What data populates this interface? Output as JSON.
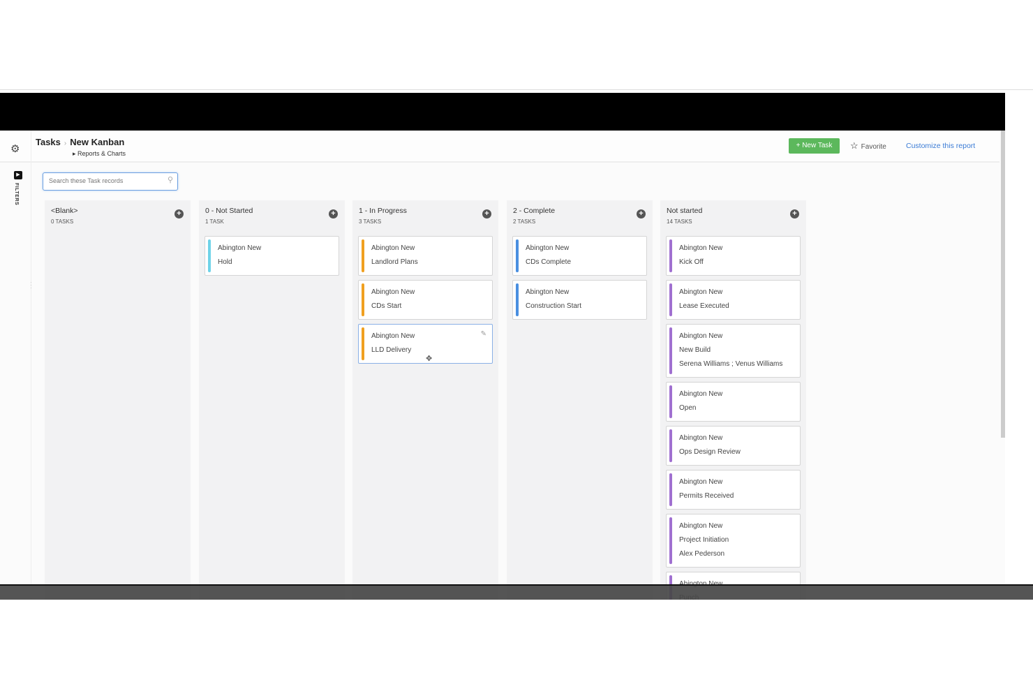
{
  "header": {
    "breadcrumb_root": "Tasks",
    "title": "New Kanban",
    "subtitle": "Reports & Charts",
    "new_task": "+ New Task",
    "favorite": "Favorite",
    "customize": "Customize this report"
  },
  "filters": {
    "label": "FILTERS"
  },
  "search": {
    "placeholder": "Search these Task records"
  },
  "colors": {
    "not_started_0": "#6fd3e8",
    "in_progress": "#f0a020",
    "complete": "#4a8fe0",
    "not_started": "#a070d0",
    "new_task_button": "#5cb85c",
    "link": "#3a7bd5"
  },
  "columns": [
    {
      "title": "<Blank>",
      "count": "0 TASKS",
      "color": "#6fd3e8",
      "cards": []
    },
    {
      "title": "0 - Not Started",
      "count": "1 TASK",
      "color": "#6fd3e8",
      "cards": [
        {
          "lines": [
            "Abington New",
            "Hold"
          ]
        }
      ]
    },
    {
      "title": "1 - In Progress",
      "count": "3 TASKS",
      "color": "#f0a020",
      "cards": [
        {
          "lines": [
            "Abington New",
            "Landlord Plans"
          ]
        },
        {
          "lines": [
            "Abington New",
            "CDs Start"
          ]
        },
        {
          "lines": [
            "Abington New",
            "LLD Delivery"
          ],
          "active": true
        }
      ]
    },
    {
      "title": "2 - Complete",
      "count": "2 TASKS",
      "color": "#4a8fe0",
      "cards": [
        {
          "lines": [
            "Abington New",
            "CDs Complete"
          ]
        },
        {
          "lines": [
            "Abington New",
            "Construction Start"
          ]
        }
      ]
    },
    {
      "title": "Not started",
      "count": "14 TASKS",
      "color": "#a070d0",
      "cards": [
        {
          "lines": [
            "Abington New",
            "Kick Off"
          ]
        },
        {
          "lines": [
            "Abington New",
            "Lease Executed"
          ]
        },
        {
          "lines": [
            "Abington New",
            "New Build",
            "Serena Williams ; Venus Williams"
          ]
        },
        {
          "lines": [
            "Abington New",
            "Open"
          ]
        },
        {
          "lines": [
            "Abington New",
            "Ops Design Review"
          ]
        },
        {
          "lines": [
            "Abington New",
            "Permits Received"
          ]
        },
        {
          "lines": [
            "Abington New",
            "Project Initiation",
            "Alex Pederson"
          ]
        },
        {
          "lines": [
            "Abington New",
            "Punch"
          ]
        }
      ]
    }
  ]
}
